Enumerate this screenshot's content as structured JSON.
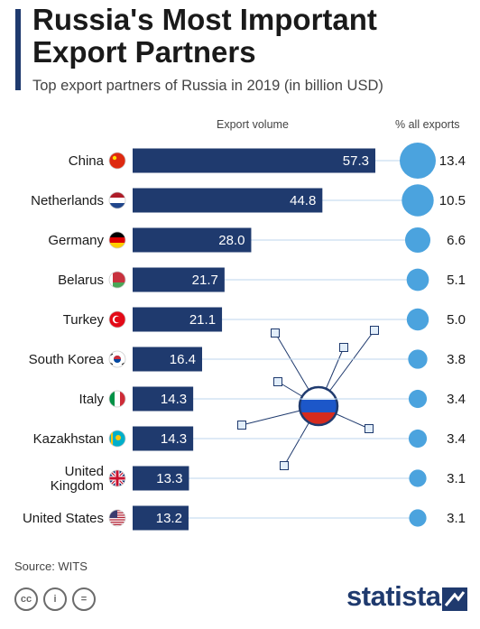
{
  "header": {
    "title": "Russia's Most Important Export Partners",
    "subtitle": "Top export partners of Russia in 2019 (in billion USD)"
  },
  "columns": {
    "volume": "Export volume",
    "share": "% all exports"
  },
  "footer": {
    "source": "Source: WITS",
    "brand": "statista"
  },
  "colors": {
    "bar": "#1f3a6e",
    "bubble": "#4ba3de",
    "accent": "#1f3a6e"
  },
  "chart_data": {
    "type": "bar",
    "orientation": "horizontal",
    "title": "Russia's Most Important Export Partners",
    "subtitle": "Top export partners of Russia in 2019 (in billion USD)",
    "categories": [
      "China",
      "Netherlands",
      "Germany",
      "Belarus",
      "Turkey",
      "South Korea",
      "Italy",
      "Kazakhstan",
      "United Kingdom",
      "United States"
    ],
    "flags": [
      "flag-china-icon",
      "flag-netherlands-icon",
      "flag-germany-icon",
      "flag-belarus-icon",
      "flag-turkey-icon",
      "flag-south-korea-icon",
      "flag-italy-icon",
      "flag-kazakhstan-icon",
      "flag-united-kingdom-icon",
      "flag-united-states-icon"
    ],
    "values": [
      57.3,
      44.8,
      28.0,
      21.7,
      21.1,
      16.4,
      14.3,
      14.3,
      13.3,
      13.2
    ],
    "value_labels": [
      "57.3",
      "44.8",
      "28.0",
      "21.7",
      "21.1",
      "16.4",
      "14.3",
      "14.3",
      "13.3",
      "13.2"
    ],
    "share": [
      13.4,
      10.5,
      6.6,
      5.1,
      5.0,
      3.8,
      3.4,
      3.4,
      3.1,
      3.1
    ],
    "share_labels": [
      "13.4",
      "10.5",
      "6.6",
      "5.1",
      "5.0",
      "3.8",
      "3.4",
      "3.4",
      "3.1",
      "3.1"
    ],
    "xlim": [
      0,
      57.3
    ],
    "grid": false,
    "legend": "none"
  }
}
